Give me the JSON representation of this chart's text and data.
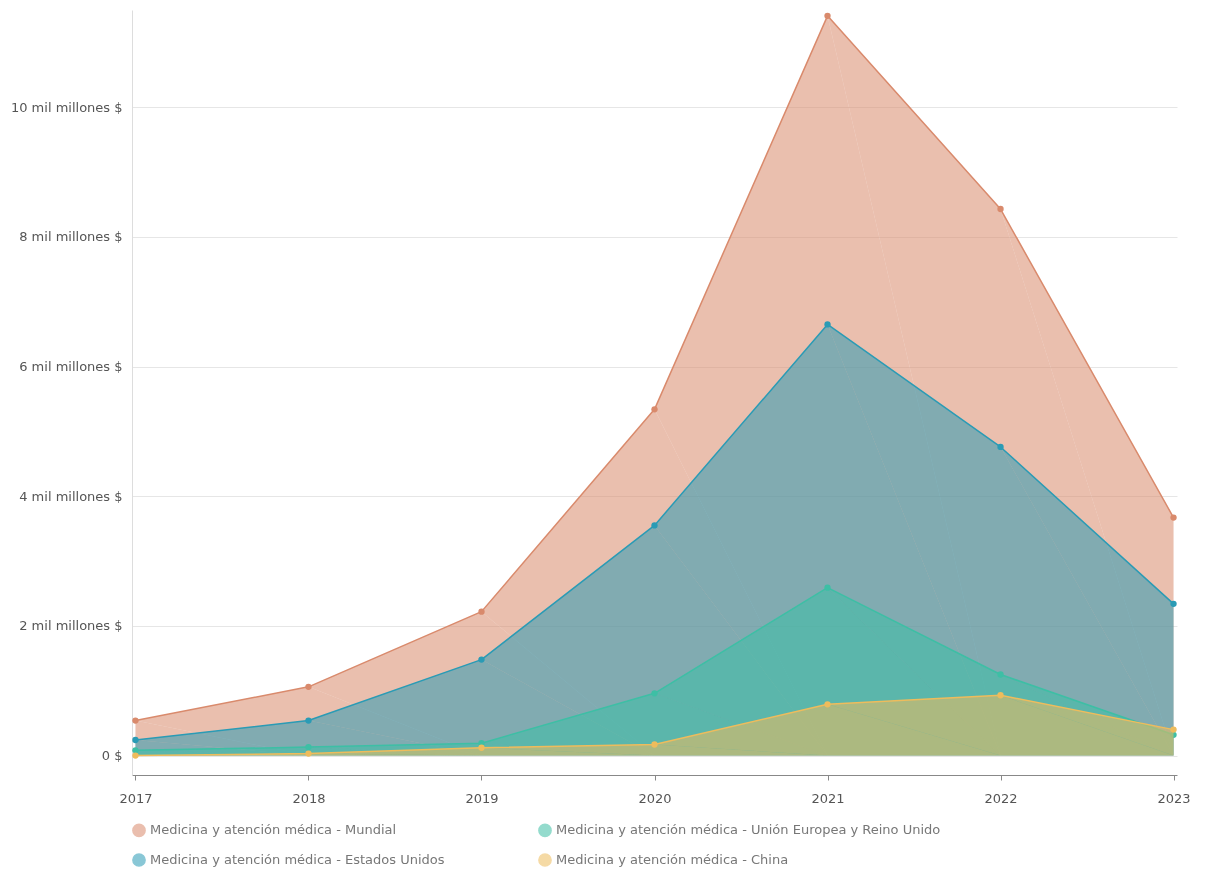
{
  "chart_data": {
    "type": "area",
    "categories": [
      "2017",
      "2018",
      "2019",
      "2020",
      "2021",
      "2022",
      "2023"
    ],
    "series": [
      {
        "name": "Medicina y atención médica - Mundial",
        "color": "#d98a6c",
        "values": [
          0.54,
          1.06,
          2.22,
          5.34,
          11.41,
          8.43,
          3.67
        ]
      },
      {
        "name": "Medicina y atención médica - Estados Unidos",
        "color": "#2a9bb5",
        "values": [
          0.24,
          0.54,
          1.48,
          3.55,
          6.65,
          4.76,
          2.34
        ]
      },
      {
        "name": "Medicina y atención médica - Unión Europea y Reino Unido",
        "color": "#3dbfa5",
        "values": [
          0.08,
          0.13,
          0.19,
          0.96,
          2.59,
          1.25,
          0.32
        ]
      },
      {
        "name": "Medicina y atención médica - China",
        "color": "#eebc5c",
        "values": [
          0.0,
          0.03,
          0.12,
          0.17,
          0.79,
          0.93,
          0.4
        ]
      }
    ],
    "ylim": [
      -0.3,
      11.5
    ],
    "yticks": [
      {
        "value": 0,
        "label": "0 $"
      },
      {
        "value": 2,
        "label": "2 mil millones $"
      },
      {
        "value": 4,
        "label": "4 mil millones $"
      },
      {
        "value": 6,
        "label": "6 mil millones $"
      },
      {
        "value": 8,
        "label": "8 mil millones $"
      },
      {
        "value": 10,
        "label": "10 mil millones $"
      }
    ],
    "grid": "y",
    "legend": "bottom",
    "marker": "circle",
    "line_style": "solid"
  }
}
